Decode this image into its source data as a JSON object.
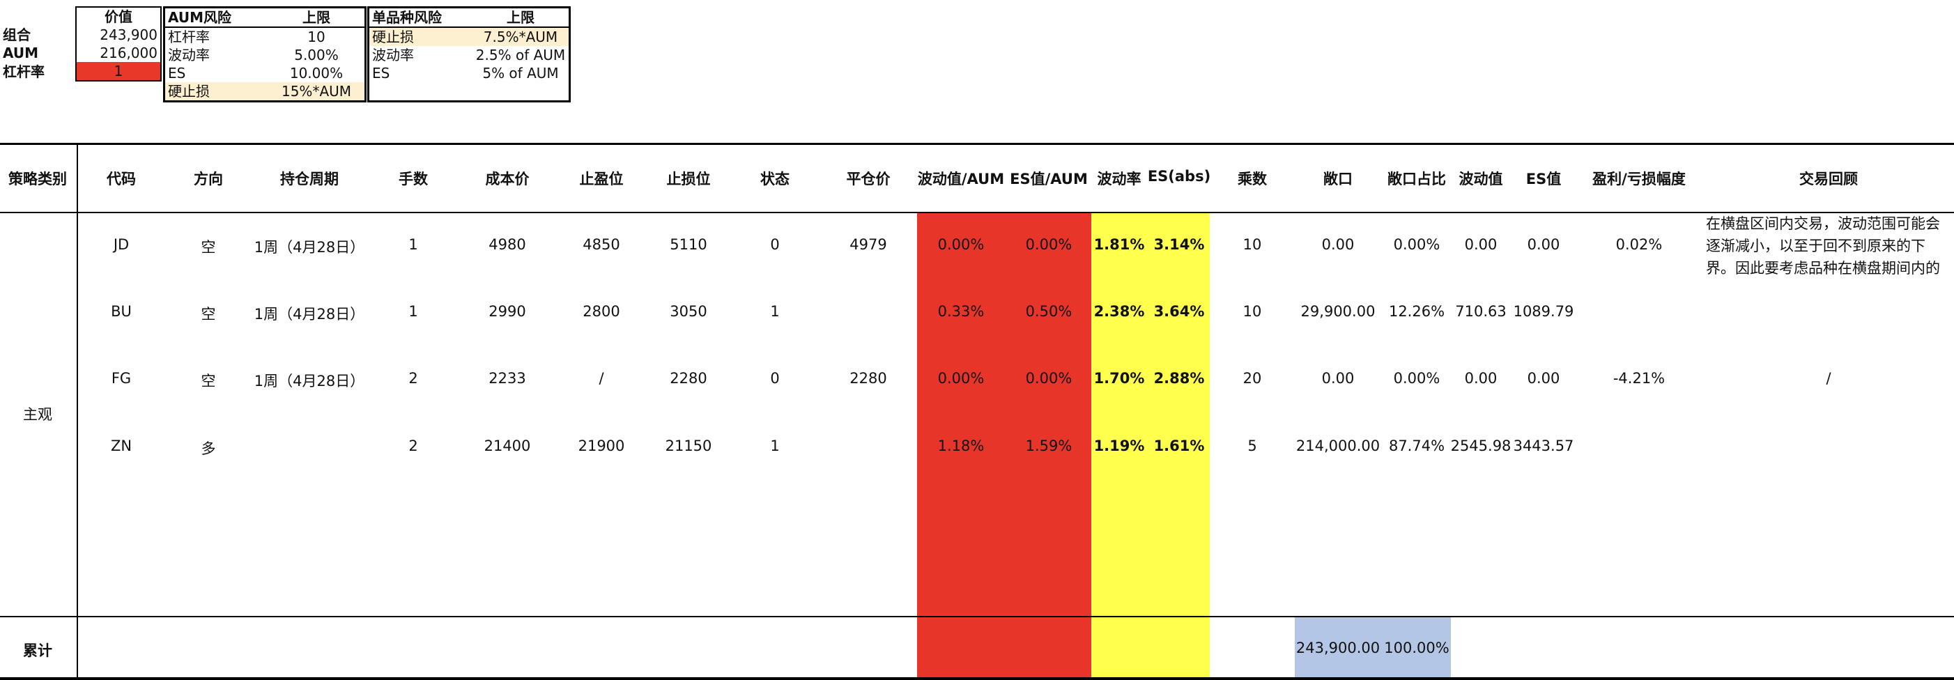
{
  "summary": {
    "header": "价值",
    "rows": [
      {
        "label": "组合",
        "value": "243,900"
      },
      {
        "label": "AUM",
        "value": "216,000"
      },
      {
        "label": "杠杆率",
        "value": "1"
      }
    ]
  },
  "aum_risk": {
    "col1": "AUM风险",
    "col2": "上限",
    "rows": [
      {
        "label": "杠杆率",
        "value": "10"
      },
      {
        "label": "波动率",
        "value": "5.00%"
      },
      {
        "label": "ES",
        "value": "10.00%"
      },
      {
        "label": "硬止损",
        "value": "15%*AUM"
      }
    ]
  },
  "single_risk": {
    "col1": "单品种风险",
    "col2": "上限",
    "rows": [
      {
        "label": "硬止损",
        "value": "7.5%*AUM"
      },
      {
        "label": "波动率",
        "value": "2.5% of AUM"
      },
      {
        "label": "ES",
        "value": "5% of AUM"
      }
    ]
  },
  "table": {
    "headers": [
      "策略类别",
      "代码",
      "方向",
      "持仓周期",
      "手数",
      "成本价",
      "止盈位",
      "止损位",
      "状态",
      "平仓价",
      "波动值/AUM",
      "ES值/AUM",
      "波动率",
      "ES(abs)",
      "乘数",
      "敞口",
      "敞口占比",
      "波动值",
      "ES值",
      "盈利/亏损幅度",
      "交易回顾"
    ],
    "category": "主观",
    "rows": [
      {
        "code": "JD",
        "dir": "空",
        "period": "1周（4月28日）",
        "lots": "1",
        "cost": "4980",
        "tp": "4850",
        "sl": "5110",
        "status": "0",
        "close": "4979",
        "vol_aum": "0.00%",
        "es_aum": "0.00%",
        "vol": "1.81%",
        "es_abs": "3.14%",
        "mult": "10",
        "exposure": "0.00",
        "exp_pct": "0.00%",
        "vol_val": "0.00",
        "es_val": "0.00",
        "pnl": "0.02%",
        "review": "在横盘区间内交易，波动范围可能会逐渐减小，以至于回不到原来的下界。因此要考虑品种在横盘期间内的波动，止"
      },
      {
        "code": "BU",
        "dir": "空",
        "period": "1周（4月28日）",
        "lots": "1",
        "cost": "2990",
        "tp": "2800",
        "sl": "3050",
        "status": "1",
        "close": "",
        "vol_aum": "0.33%",
        "es_aum": "0.50%",
        "vol": "2.38%",
        "es_abs": "3.64%",
        "mult": "10",
        "exposure": "29,900.00",
        "exp_pct": "12.26%",
        "vol_val": "710.63",
        "es_val": "1089.79",
        "pnl": "",
        "review": ""
      },
      {
        "code": "FG",
        "dir": "空",
        "period": "1周（4月28日）",
        "lots": "2",
        "cost": "2233",
        "tp": "/",
        "sl": "2280",
        "status": "0",
        "close": "2280",
        "vol_aum": "0.00%",
        "es_aum": "0.00%",
        "vol": "1.70%",
        "es_abs": "2.88%",
        "mult": "20",
        "exposure": "0.00",
        "exp_pct": "0.00%",
        "vol_val": "0.00",
        "es_val": "0.00",
        "pnl": "-4.21%",
        "review": "/"
      },
      {
        "code": "ZN",
        "dir": "多",
        "period": "",
        "lots": "2",
        "cost": "21400",
        "tp": "21900",
        "sl": "21150",
        "status": "1",
        "close": "",
        "vol_aum": "1.18%",
        "es_aum": "1.59%",
        "vol": "1.19%",
        "es_abs": "1.61%",
        "mult": "5",
        "exposure": "214,000.00",
        "exp_pct": "87.74%",
        "vol_val": "2545.98",
        "es_val": "3443.57",
        "pnl": "",
        "review": ""
      }
    ],
    "total": {
      "label": "累计",
      "exposure": "243,900.00",
      "exp_pct": "100.00%"
    }
  },
  "colors": {
    "red": "#e8352a",
    "yellow": "#ffff4d",
    "blue": "#b4c6e6",
    "cream": "#fdf0d0"
  }
}
